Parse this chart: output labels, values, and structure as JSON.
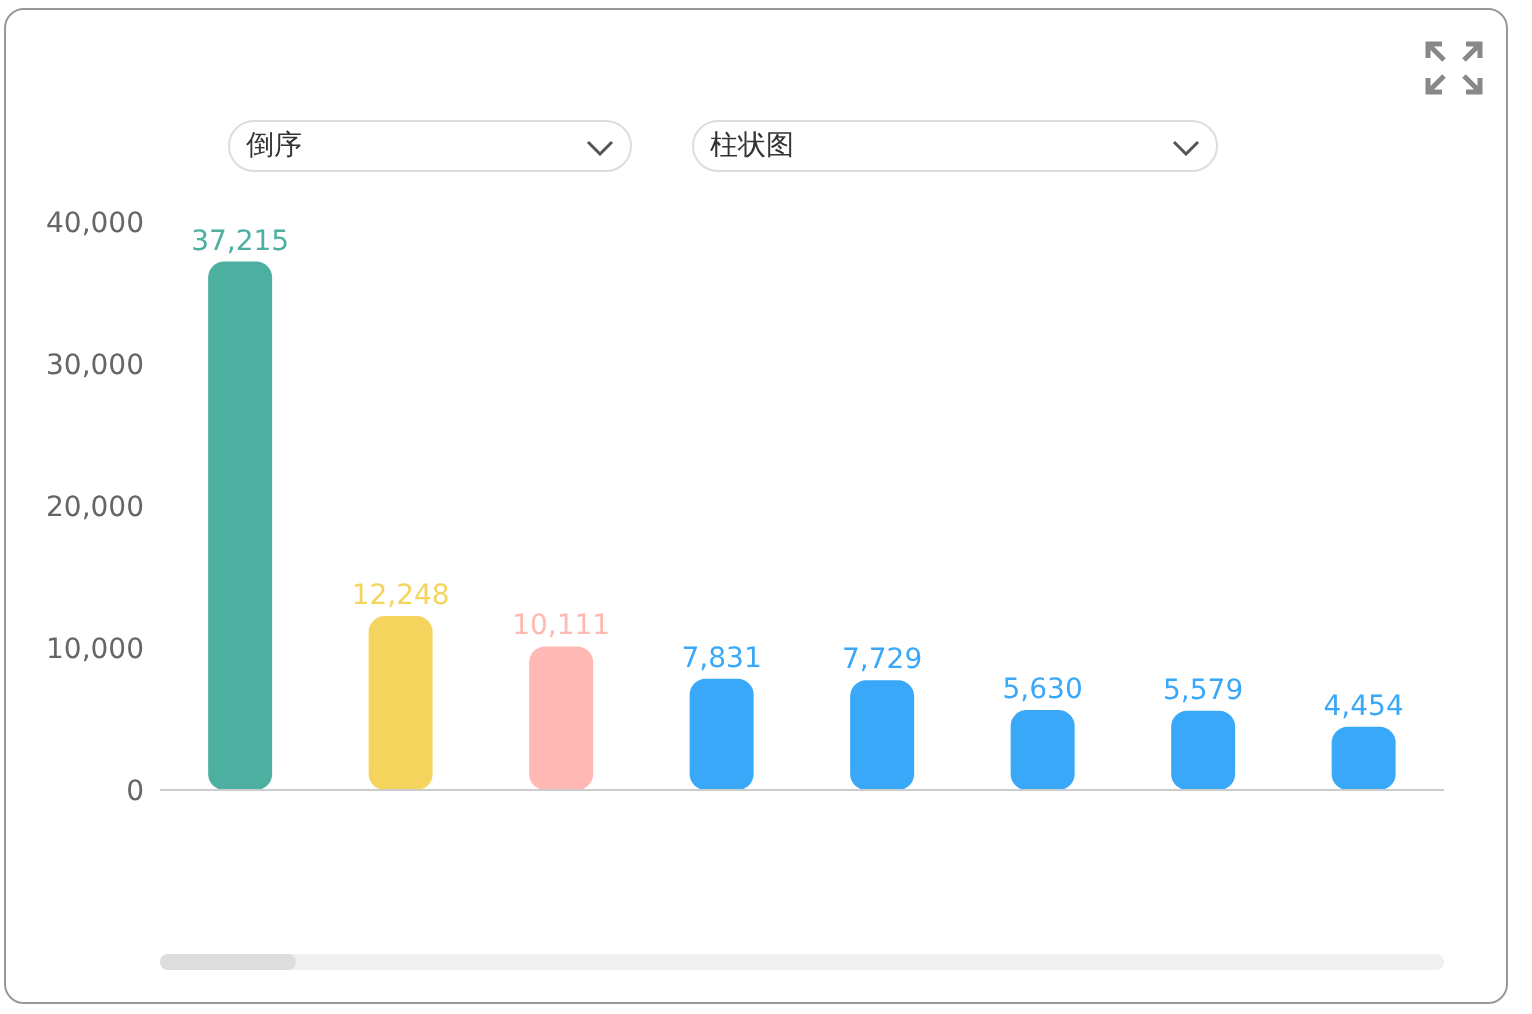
{
  "chart_data": {
    "type": "bar",
    "categories": [
      null,
      null,
      null,
      null,
      null,
      null,
      null,
      null
    ],
    "values": [
      37215,
      12248,
      10111,
      7831,
      7729,
      5630,
      5579,
      4454
    ],
    "colors": [
      "#4caf9f",
      "#f5d45e",
      "#ffb8b3",
      "#3aa8f8",
      "#3aa8f8",
      "#3aa8f8",
      "#3aa8f8",
      "#3aa8f8"
    ],
    "ylim": [
      0,
      40000
    ],
    "yticks": [
      0,
      {
        "value": 10000,
        "label": "10,000"
      },
      {
        "value": 20000,
        "label": "20,000"
      },
      {
        "value": 30000,
        "label": "30,000"
      },
      {
        "value": 40000,
        "label": "40,000"
      }
    ],
    "grid": false,
    "legend": false,
    "value_labels": [
      "37,215",
      "12,248",
      "10,111",
      "7,831",
      "7,729",
      "5,630",
      "5,579",
      "4,454"
    ],
    "annotations": [
      "倒序",
      "柱状图"
    ]
  }
}
